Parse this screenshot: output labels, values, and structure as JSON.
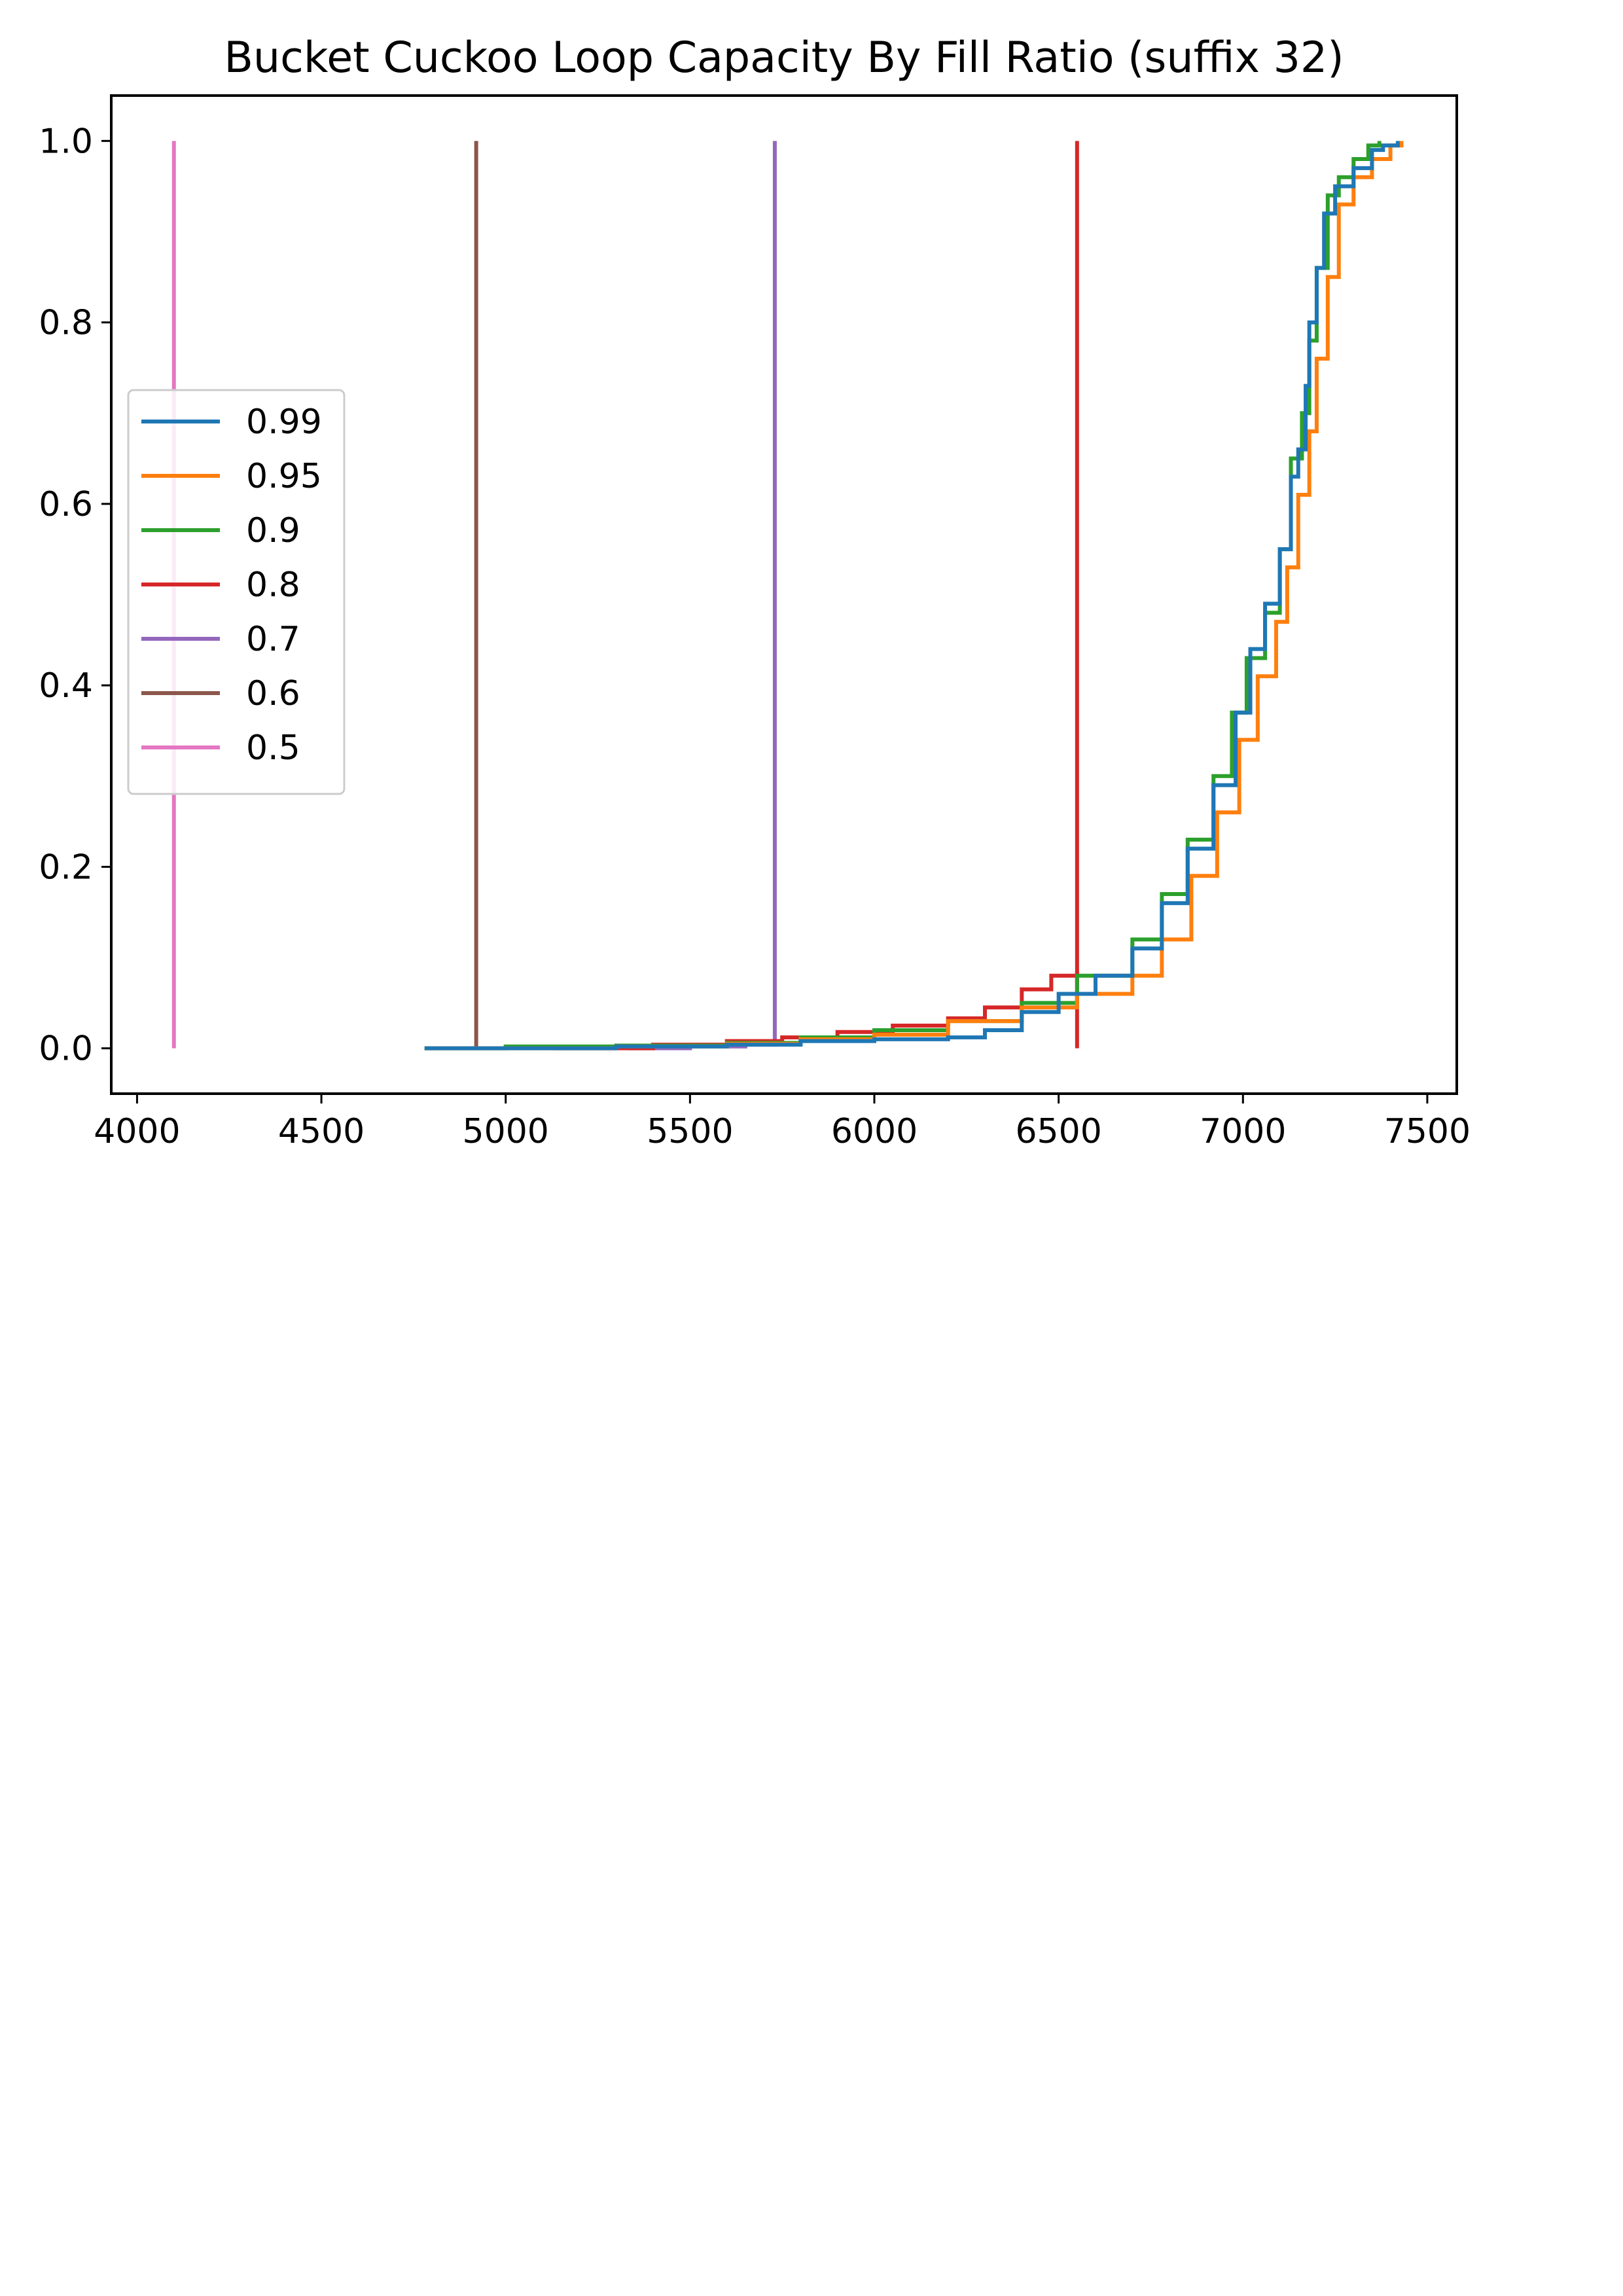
{
  "chart_data": {
    "type": "line",
    "title": "Bucket Cuckoo Loop Capacity By Fill Ratio (suffix 32)",
    "xlabel": "",
    "ylabel": "",
    "xlim": [
      3930,
      7580
    ],
    "ylim": [
      -0.05,
      1.05
    ],
    "x_ticks": [
      4000,
      4500,
      5000,
      5500,
      6000,
      6500,
      7000,
      7500
    ],
    "x_tick_labels": [
      "4000",
      "4500",
      "5000",
      "5500",
      "6000",
      "6500",
      "7000",
      "7500"
    ],
    "y_ticks": [
      0.0,
      0.2,
      0.4,
      0.6,
      0.8,
      1.0
    ],
    "y_tick_labels": [
      "0.0",
      "0.2",
      "0.4",
      "0.6",
      "0.8",
      "1.0"
    ],
    "grid": false,
    "legend": {
      "position": "center-left"
    },
    "series": [
      {
        "name": "0.99",
        "color": "#1f77b4",
        "x": [
          4780,
          5000,
          5300,
          5600,
          5800,
          6000,
          6200,
          6300,
          6400,
          6500,
          6600,
          6700,
          6780,
          6850,
          6920,
          6980,
          7020,
          7060,
          7100,
          7130,
          7150,
          7170,
          7180,
          7200,
          7220,
          7250,
          7300,
          7350,
          7380,
          7420
        ],
        "y": [
          0.0,
          0.0,
          0.002,
          0.004,
          0.008,
          0.01,
          0.012,
          0.02,
          0.04,
          0.06,
          0.08,
          0.11,
          0.16,
          0.22,
          0.29,
          0.37,
          0.44,
          0.49,
          0.55,
          0.63,
          0.66,
          0.73,
          0.8,
          0.86,
          0.92,
          0.95,
          0.97,
          0.99,
          0.995,
          1.0
        ]
      },
      {
        "name": "0.95",
        "color": "#ff7f0e",
        "x": [
          4780,
          5000,
          5300,
          5600,
          5800,
          6000,
          6200,
          6400,
          6550,
          6700,
          6780,
          6860,
          6930,
          6990,
          7040,
          7090,
          7120,
          7150,
          7180,
          7200,
          7230,
          7260,
          7300,
          7350,
          7400,
          7430
        ],
        "y": [
          0.0,
          0.0,
          0.002,
          0.005,
          0.01,
          0.015,
          0.03,
          0.045,
          0.06,
          0.08,
          0.12,
          0.19,
          0.26,
          0.34,
          0.41,
          0.47,
          0.53,
          0.61,
          0.68,
          0.76,
          0.85,
          0.93,
          0.96,
          0.98,
          0.995,
          1.0
        ]
      },
      {
        "name": "0.9",
        "color": "#2ca02c",
        "x": [
          4780,
          5000,
          5300,
          5600,
          5800,
          6000,
          6200,
          6400,
          6550,
          6700,
          6780,
          6850,
          6920,
          6970,
          7010,
          7060,
          7100,
          7130,
          7160,
          7180,
          7200,
          7230,
          7260,
          7300,
          7340,
          7370
        ],
        "y": [
          0.0,
          0.002,
          0.003,
          0.006,
          0.012,
          0.02,
          0.03,
          0.05,
          0.08,
          0.12,
          0.17,
          0.23,
          0.3,
          0.37,
          0.43,
          0.48,
          0.55,
          0.65,
          0.7,
          0.78,
          0.86,
          0.94,
          0.96,
          0.98,
          0.995,
          1.0
        ]
      },
      {
        "name": "0.8",
        "color": "#d62728",
        "x": [
          6550,
          6550
        ],
        "y": [
          0.0,
          1.0
        ],
        "x_path": [
          5130,
          5400,
          5600,
          5750,
          5900,
          6050,
          6200,
          6300,
          6400,
          6480,
          6550
        ],
        "y_path": [
          0.0,
          0.004,
          0.008,
          0.012,
          0.018,
          0.025,
          0.033,
          0.045,
          0.065,
          0.08,
          0.085
        ]
      },
      {
        "name": "0.7",
        "color": "#9467bd",
        "x": [
          5330,
          5500,
          5650,
          5730,
          5730
        ],
        "y": [
          0.0,
          0.002,
          0.004,
          0.006,
          1.0
        ]
      },
      {
        "name": "0.6",
        "color": "#8c564b",
        "x": [
          4920,
          4920
        ],
        "y": [
          0.0,
          1.0
        ]
      },
      {
        "name": "0.5",
        "color": "#e377c2",
        "x": [
          4100,
          4100
        ],
        "y": [
          0.0,
          1.0
        ]
      }
    ]
  }
}
